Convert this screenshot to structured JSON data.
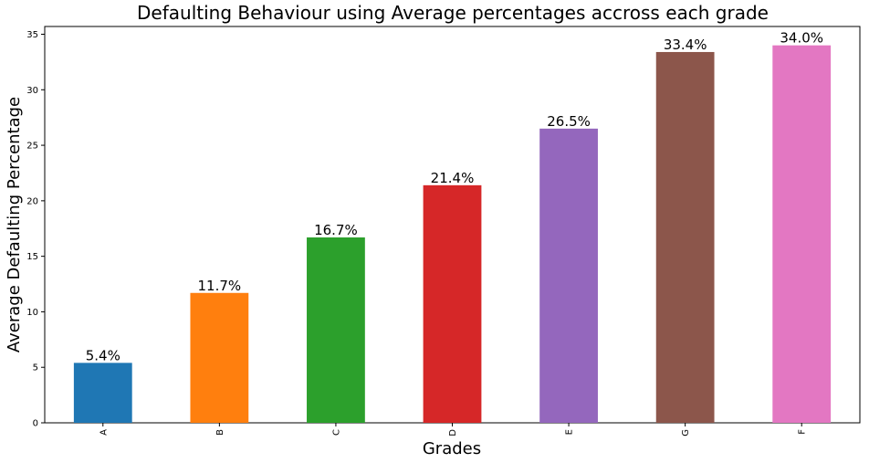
{
  "chart_data": {
    "type": "bar",
    "title": "Defaulting Behaviour using Average percentages accross each grade",
    "xlabel": "Grades",
    "ylabel": "Average Defaulting Percentage",
    "categories": [
      "A",
      "B",
      "C",
      "D",
      "E",
      "G",
      "F"
    ],
    "values": [
      5.4,
      11.7,
      16.7,
      21.4,
      26.5,
      33.4,
      34.0
    ],
    "data_labels": [
      "5.4%",
      "11.7%",
      "16.7%",
      "21.4%",
      "26.5%",
      "33.4%",
      "34.0%"
    ],
    "colors": [
      "#1f77b4",
      "#ff7f0e",
      "#2ca02c",
      "#d62728",
      "#9467bd",
      "#8c564b",
      "#e377c2"
    ],
    "ylim": [
      0,
      35.7
    ],
    "yticks": [
      0,
      5,
      10,
      15,
      20,
      25,
      30,
      35
    ],
    "ytick_labels": [
      "0",
      "5",
      "10",
      "15",
      "20",
      "25",
      "30",
      "35"
    ],
    "grid": false,
    "legend": "none"
  }
}
